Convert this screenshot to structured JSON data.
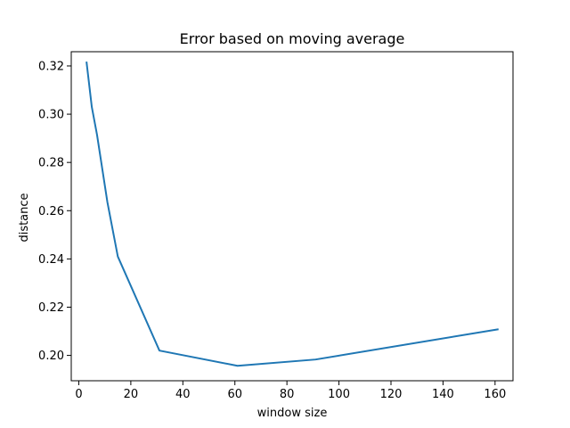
{
  "chart_data": {
    "type": "line",
    "title": "Error based on moving average",
    "xlabel": "window size",
    "ylabel": "distance",
    "xlim": [
      -2.9,
      166.9
    ],
    "ylim": [
      0.1895,
      0.3259
    ],
    "xticks": [
      0,
      20,
      40,
      60,
      80,
      100,
      120,
      140,
      160
    ],
    "xtick_labels": [
      "0",
      "20",
      "40",
      "60",
      "80",
      "100",
      "120",
      "140",
      "160"
    ],
    "yticks": [
      0.2,
      0.22,
      0.24,
      0.26,
      0.28,
      0.3,
      0.32
    ],
    "ytick_labels": [
      "0.20",
      "0.22",
      "0.24",
      "0.26",
      "0.28",
      "0.30",
      "0.32"
    ],
    "grid": false,
    "legend": "none",
    "series": [
      {
        "color": "#1f77b4",
        "x": [
          3,
          5,
          7,
          11,
          15,
          31,
          61,
          91,
          161
        ],
        "y": [
          0.3214,
          0.303,
          0.2915,
          0.2635,
          0.241,
          0.202,
          0.1957,
          0.1983,
          0.2108
        ]
      }
    ]
  }
}
